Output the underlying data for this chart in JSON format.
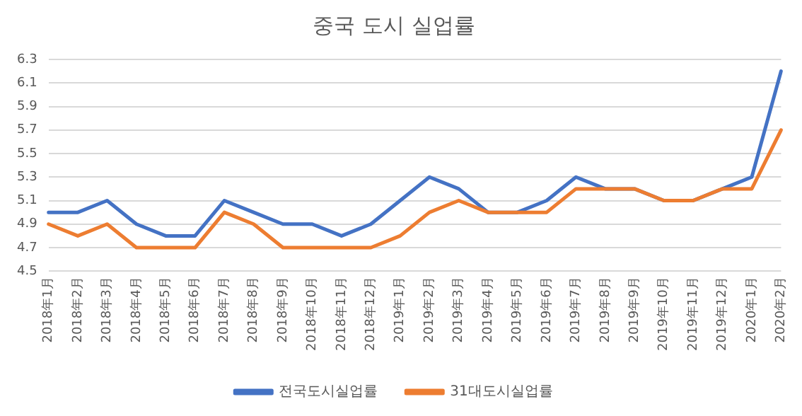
{
  "chart_data": {
    "type": "line",
    "title": "중국 도시 실업률",
    "categories": [
      "2018年1月",
      "2018年2月",
      "2018年3月",
      "2018年4月",
      "2018年5月",
      "2018年6月",
      "2018年7月",
      "2018年8月",
      "2018年9月",
      "2018年10月",
      "2018年11月",
      "2018年12月",
      "2019年1月",
      "2019年2月",
      "2019年3月",
      "2019年4月",
      "2019年5月",
      "2019年6月",
      "2019年7月",
      "2019年8月",
      "2019年9月",
      "2019年10月",
      "2019年11月",
      "2019年12月",
      "2020年1月",
      "2020年2月"
    ],
    "series": [
      {
        "name": "전국도시실업률",
        "color": "#4472c4",
        "values": [
          5.0,
          5.0,
          5.1,
          4.9,
          4.8,
          4.8,
          5.1,
          5.0,
          4.9,
          4.9,
          4.8,
          4.9,
          5.1,
          5.3,
          5.2,
          5.0,
          5.0,
          5.1,
          5.3,
          5.2,
          5.2,
          5.1,
          5.1,
          5.2,
          5.3,
          6.2
        ]
      },
      {
        "name": "31대도시실업률",
        "color": "#ed7d31",
        "values": [
          4.9,
          4.8,
          4.9,
          4.7,
          4.7,
          4.7,
          5.0,
          4.9,
          4.7,
          4.7,
          4.7,
          4.7,
          4.8,
          5.0,
          5.1,
          5.0,
          5.0,
          5.0,
          5.2,
          5.2,
          5.2,
          5.1,
          5.1,
          5.2,
          5.2,
          5.7
        ]
      }
    ],
    "ylim": [
      4.5,
      6.3
    ],
    "yticks": [
      4.5,
      4.7,
      4.9,
      5.1,
      5.3,
      5.5,
      5.7,
      5.9,
      6.1,
      6.3
    ],
    "grid": "y",
    "legend": "bottom",
    "marker": "none",
    "line_style": "solid"
  }
}
